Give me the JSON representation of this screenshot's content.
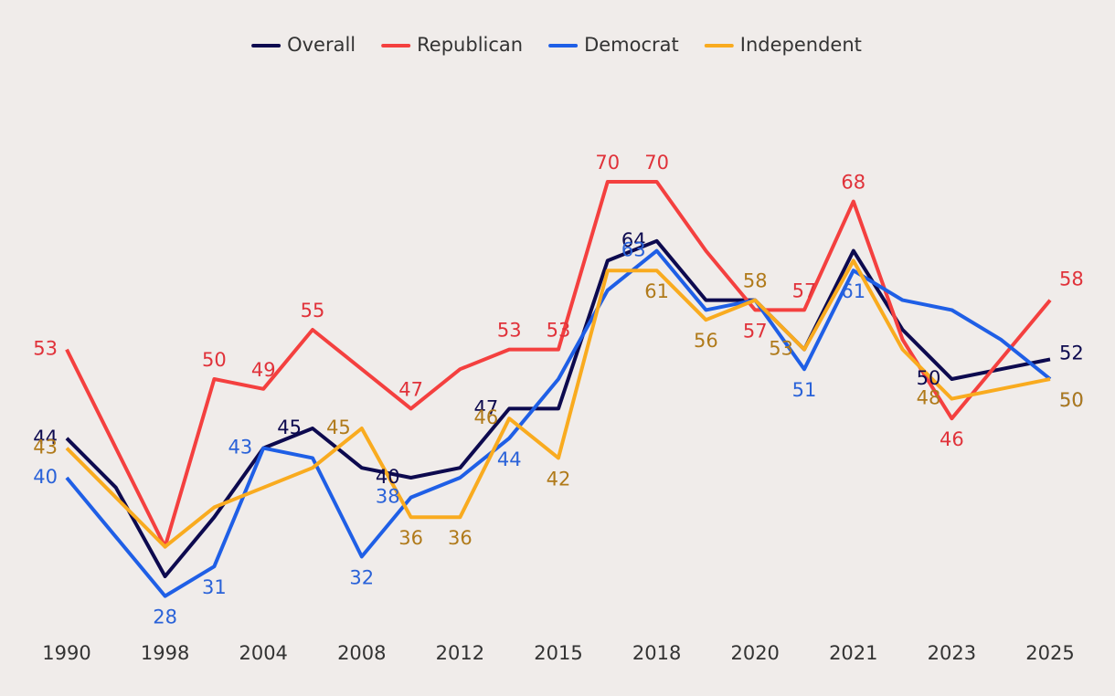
{
  "chart_data": {
    "type": "line",
    "categories": [
      "1990",
      null,
      "1998",
      null,
      "2004",
      null,
      "2008",
      null,
      "2012",
      null,
      "2015",
      null,
      "2018",
      null,
      "2020",
      null,
      "2021",
      null,
      "2023",
      null,
      "2025"
    ],
    "ylim": [
      20,
      75
    ],
    "legend": "top",
    "series": [
      {
        "name": "Overall",
        "color": "#0d0a4f",
        "label_color": "#0d0a4f",
        "values": [
          44,
          39,
          30,
          36,
          43,
          45,
          41,
          40,
          41,
          47,
          47,
          62,
          64,
          58,
          58,
          53,
          63,
          55,
          50,
          51,
          52
        ],
        "value_labels": [
          "44",
          null,
          null,
          null,
          null,
          "45",
          null,
          "40",
          null,
          "47",
          null,
          null,
          "64",
          null,
          null,
          null,
          null,
          null,
          "50",
          null,
          "52"
        ]
      },
      {
        "name": "Republican",
        "color": "#f4403f",
        "label_color": "#e0323a",
        "values": [
          53,
          43,
          33,
          50,
          49,
          55,
          51,
          47,
          51,
          53,
          53,
          70,
          70,
          63,
          57,
          57,
          68,
          54,
          46,
          52,
          58
        ],
        "value_labels": [
          "53",
          null,
          null,
          "50",
          "49",
          "55",
          null,
          "47",
          null,
          "53",
          "53",
          "70",
          "70",
          null,
          "57",
          "57",
          "68",
          null,
          "46",
          null,
          "58"
        ]
      },
      {
        "name": "Democrat",
        "color": "#1f5fe6",
        "label_color": "#2a62d8",
        "values": [
          40,
          34,
          28,
          31,
          43,
          42,
          32,
          38,
          40,
          44,
          50,
          59,
          63,
          57,
          58,
          51,
          61,
          58,
          57,
          54,
          50
        ],
        "value_labels": [
          "40",
          null,
          "28",
          "31",
          "43",
          null,
          "32",
          "38",
          null,
          "44",
          null,
          null,
          "63",
          null,
          null,
          "51",
          "61",
          null,
          null,
          null,
          "50"
        ]
      },
      {
        "name": "Independent",
        "color": "#f9ab1f",
        "label_color": "#b07a1a",
        "values": [
          43,
          38,
          33,
          37,
          39,
          41,
          45,
          36,
          36,
          46,
          42,
          61,
          61,
          56,
          58,
          53,
          62,
          53,
          48,
          49,
          50
        ],
        "value_labels": [
          "43",
          null,
          null,
          null,
          null,
          null,
          "45",
          "36",
          "36",
          "46",
          "42",
          null,
          "61",
          "56",
          "58",
          "53",
          null,
          null,
          "48",
          null,
          "50"
        ]
      }
    ]
  }
}
